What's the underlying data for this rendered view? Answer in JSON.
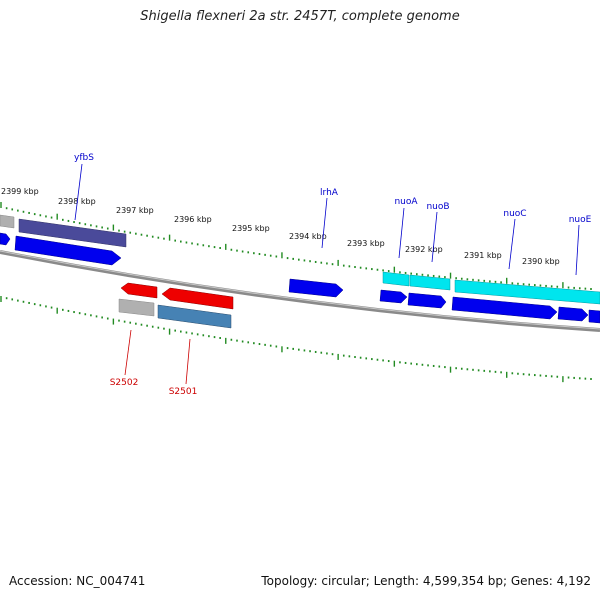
{
  "title": "Shigella flexneri 2a str. 2457T, complete genome",
  "footer": {
    "accession": "Accession: NC_004741",
    "summary": "Topology: circular; Length: 4,599,354 bp; Genes: 4,192"
  },
  "colors": {
    "backbone": "#808080",
    "tick": "#228b22",
    "gene_forward": "#0000ee",
    "gene_reverse": "#ee0000",
    "cds_cyan": "#00e5ee",
    "cds_slate": "#4a4a9a",
    "cds_steel": "#4682b4",
    "cds_gray": "#b0b0b0",
    "label_forward": "#0000cc",
    "label_reverse": "#cc0000"
  },
  "kbp_labels": [
    "2399 kbp",
    "2398 kbp",
    "2397 kbp",
    "2396 kbp",
    "2395 kbp",
    "2394 kbp",
    "2393 kbp",
    "2392 kbp",
    "2391 kbp",
    "2390 kbp"
  ],
  "gene_labels": {
    "forward": [
      "yfbS",
      "lrhA",
      "nuoA",
      "nuoB",
      "nuoC",
      "nuoE"
    ],
    "reverse": [
      "S2502",
      "S2501"
    ]
  }
}
